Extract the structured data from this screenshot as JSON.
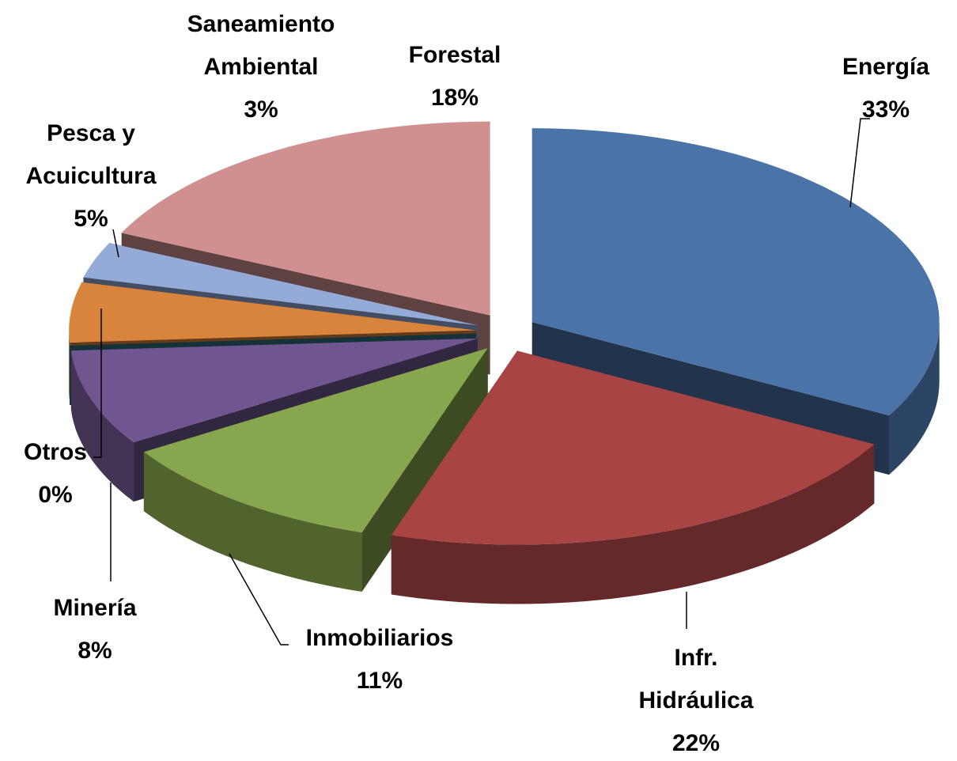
{
  "chart_data": {
    "type": "pie3d",
    "categories": [
      "Energía",
      "Infr. Hidráulica",
      "Inmobiliarios",
      "Minería",
      "Otros",
      "Pesca y Acuicultura",
      "Saneamiento Ambiental",
      "Forestal"
    ],
    "values": [
      33,
      22,
      11,
      8,
      0,
      5,
      3,
      18
    ],
    "value_labels": [
      "33%",
      "22%",
      "11%",
      "8%",
      "0%",
      "5%",
      "3%",
      "18%"
    ],
    "colors": [
      "#4a73a8",
      "#a84544",
      "#88a64d",
      "#6f5690",
      "#2f6f7d",
      "#d9843d",
      "#94abd7",
      "#d09090"
    ]
  }
}
